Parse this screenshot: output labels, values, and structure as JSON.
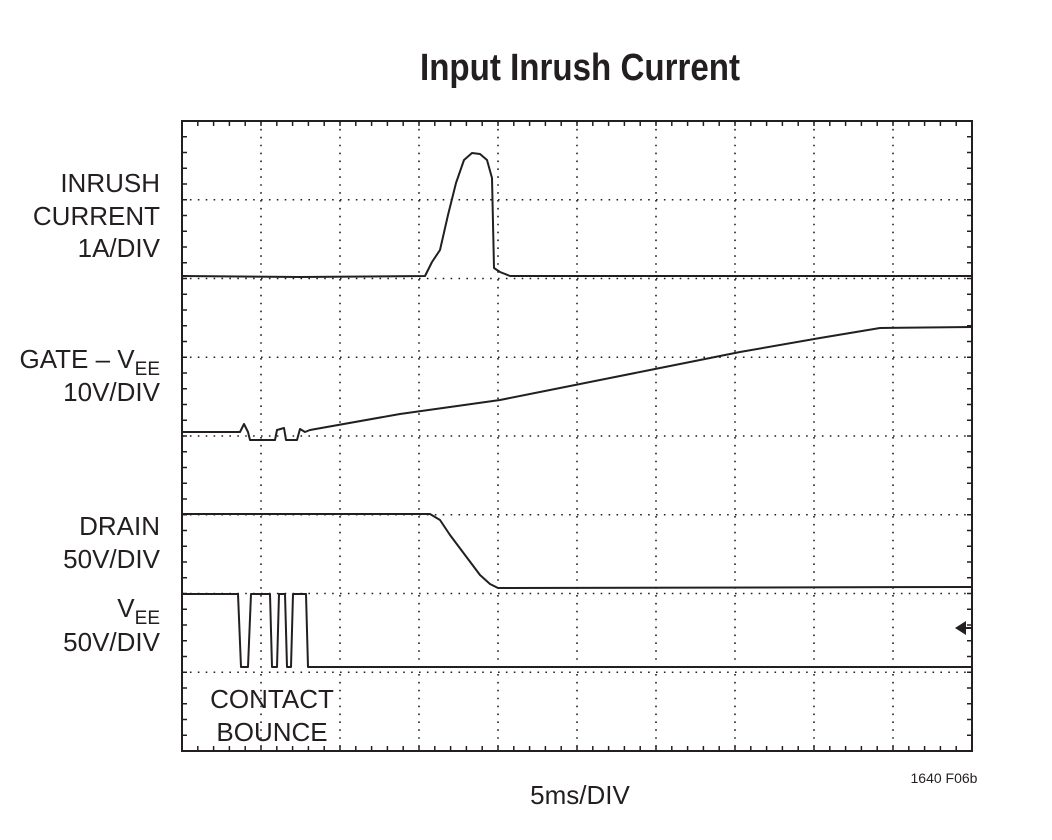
{
  "title": "Input Inrush Current",
  "traces": [
    {
      "label_lines": [
        "INRUSH",
        "CURRENT"
      ],
      "scale": "1A/DIV"
    },
    {
      "label_lines": [
        "GATE – V"
      ],
      "label_subscript": "EE",
      "scale": "10V/DIV"
    },
    {
      "label_lines": [
        "DRAIN"
      ],
      "scale": "50V/DIV"
    },
    {
      "label_lines": [
        "V"
      ],
      "label_subscript": "EE",
      "scale": "50V/DIV"
    }
  ],
  "annotation_lines": [
    "CONTACT",
    "BOUNCE"
  ],
  "time_scale": "5ms/DIV",
  "figure_id": "1640 F06b"
}
